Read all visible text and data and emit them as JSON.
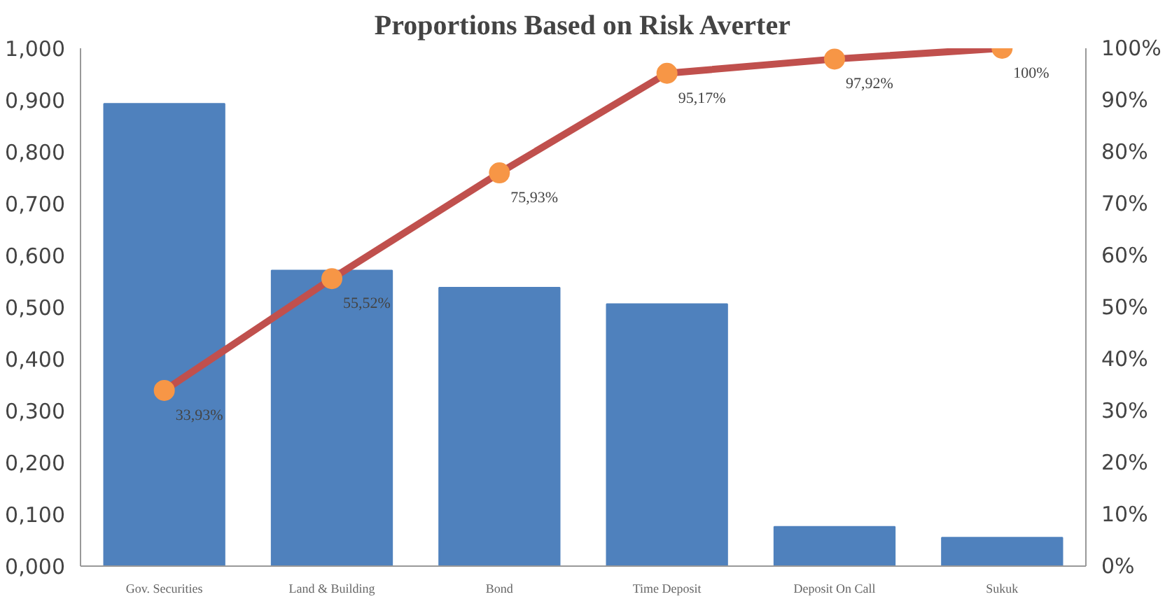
{
  "chart_data": {
    "type": "bar",
    "title": "Proportions Based on Risk Averter",
    "categories": [
      "Gov. Securities",
      "Land & Building",
      "Bond",
      "Time Deposit",
      "Deposit On Call",
      "Sukuk"
    ],
    "series": [
      {
        "color": "#4f81bd",
        "values": [
          0.893,
          0.571,
          0.538,
          0.506,
          0.076,
          0.055
        ]
      },
      {
        "type": "line",
        "axis": "y2",
        "color": "#c0504d",
        "marker": "circle",
        "values": [
          33.93,
          55.52,
          75.93,
          95.17,
          97.92,
          100
        ],
        "value_labels": [
          "33,93%",
          "55,52%",
          "75,93%",
          "95,17%",
          "97,92%",
          "100%"
        ]
      }
    ],
    "ylim": [
      0,
      1
    ],
    "yticks": [
      {
        "value": 0,
        "label": "0,000"
      },
      {
        "value": 0.1,
        "label": "0,100"
      },
      {
        "value": 0.2,
        "label": "0,200"
      },
      {
        "value": 0.3,
        "label": "0,300"
      },
      {
        "value": 0.4,
        "label": "0,400"
      },
      {
        "value": 0.5,
        "label": "0,500"
      },
      {
        "value": 0.6,
        "label": "0,600"
      },
      {
        "value": 0.7,
        "label": "0,700"
      },
      {
        "value": 0.8,
        "label": "0,800"
      },
      {
        "value": 0.9,
        "label": "0,900"
      },
      {
        "value": 1,
        "label": "1,000"
      }
    ],
    "y2lim": [
      0,
      100
    ],
    "y2ticks": [
      {
        "value": 0,
        "label": "0%"
      },
      {
        "value": 10,
        "label": "10%"
      },
      {
        "value": 20,
        "label": "20%"
      },
      {
        "value": 30,
        "label": "30%"
      },
      {
        "value": 40,
        "label": "40%"
      },
      {
        "value": 50,
        "label": "50%"
      },
      {
        "value": 60,
        "label": "60%"
      },
      {
        "value": 70,
        "label": "70%"
      },
      {
        "value": 80,
        "label": "80%"
      },
      {
        "value": 90,
        "label": "90%"
      },
      {
        "value": 100,
        "label": "100%"
      }
    ],
    "grid": false
  }
}
